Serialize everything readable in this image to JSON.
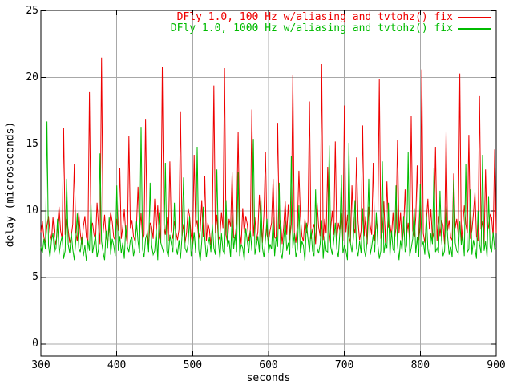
{
  "colors": {
    "background": "#ffffff",
    "axis": "#000000",
    "grid": "#a8a8a8",
    "series_red": "#ee0000",
    "series_green": "#00bb00"
  },
  "chart_data": {
    "type": "line",
    "title": "",
    "xlabel": "seconds",
    "ylabel": "delay (microseconds)",
    "xlim": [
      300,
      900
    ],
    "ylim": [
      0,
      25
    ],
    "xticks": [
      300,
      400,
      500,
      600,
      700,
      800,
      900
    ],
    "yticks": [
      0,
      5,
      10,
      15,
      20,
      25
    ],
    "grid": true,
    "legend_position": "top-right-inside",
    "x_start": 300,
    "x_step": 2,
    "series": [
      {
        "name": "DFly 1.0, 100 Hz w/aliasing and tvtohz() fix",
        "color": "#ee0000",
        "values": [
          8.4,
          9.2,
          8.0,
          7.6,
          8.9,
          9.6,
          8.3,
          7.8,
          9.5,
          8.1,
          7.4,
          8.8,
          10.3,
          8.5,
          7.9,
          16.2,
          8.2,
          9.4,
          8.6,
          7.6,
          8.1,
          9.0,
          13.5,
          8.4,
          7.7,
          9.9,
          8.3,
          7.5,
          8.8,
          9.6,
          8.0,
          7.7,
          18.9,
          8.6,
          9.1,
          8.2,
          7.8,
          10.6,
          8.9,
          7.5,
          21.5,
          8.3,
          9.7,
          8.1,
          7.6,
          8.7,
          9.9,
          9.2,
          8.0,
          7.8,
          9.4,
          8.5,
          13.2,
          7.9,
          8.8,
          10.1,
          8.2,
          7.5,
          15.6,
          8.7,
          9.3,
          8.1,
          7.7,
          8.9,
          11.8,
          8.4,
          9.8,
          7.8,
          8.2,
          16.9,
          8.6,
          7.4,
          9.1,
          8.8,
          7.9,
          10.9,
          8.3,
          10.4,
          8.0,
          7.6,
          20.8,
          8.9,
          8.2,
          9.5,
          7.7,
          13.7,
          8.5,
          7.9,
          9.2,
          8.4,
          7.8,
          8.6,
          17.4,
          8.1,
          9.0,
          7.6,
          8.4,
          10.2,
          9.6,
          8.2,
          7.5,
          14.2,
          8.8,
          9.3,
          7.9,
          8.5,
          10.8,
          8.0,
          12.6,
          7.7,
          9.1,
          8.6,
          7.4,
          8.9,
          19.4,
          8.3,
          9.7,
          7.8,
          8.1,
          9.9,
          8.7,
          20.7,
          8.2,
          7.6,
          9.4,
          8.8,
          12.9,
          8.0,
          7.9,
          9.2,
          15.9,
          8.5,
          7.5,
          10.2,
          8.3,
          9.6,
          9.0,
          7.7,
          8.6,
          17.6,
          8.1,
          9.5,
          7.8,
          8.4,
          11.2,
          8.9,
          7.6,
          9.8,
          14.4,
          8.2,
          7.7,
          8.5,
          9.1,
          12.4,
          8.0,
          7.9,
          16.6,
          8.6,
          9.3,
          7.5,
          8.8,
          10.7,
          8.2,
          10.5,
          7.8,
          9.0,
          20.2,
          8.4,
          7.6,
          8.9,
          13.0,
          9.6,
          8.1,
          7.7,
          9.4,
          8.3,
          9.2,
          18.2,
          7.9,
          8.6,
          9.0,
          7.5,
          10.6,
          8.8,
          8.1,
          21.0,
          7.8,
          9.4,
          8.3,
          13.3,
          7.6,
          8.7,
          10.0,
          8.2,
          15.2,
          7.9,
          9.1,
          8.5,
          9.8,
          7.7,
          17.9,
          8.4,
          9.7,
          8.0,
          7.6,
          11.9,
          8.8,
          8.3,
          14.0,
          9.2,
          7.8,
          8.5,
          16.4,
          8.1,
          9.6,
          7.5,
          10.3,
          8.9,
          8.2,
          13.6,
          7.7,
          9.3,
          8.6,
          19.9,
          7.9,
          8.4,
          10.7,
          7.6,
          12.2,
          8.8,
          9.0,
          8.1,
          9.9,
          7.8,
          8.7,
          15.3,
          8.3,
          9.9,
          7.5,
          8.6,
          11.6,
          8.2,
          9.1,
          7.7,
          17.1,
          8.5,
          8.0,
          9.5,
          13.4,
          7.8,
          8.8,
          20.6,
          8.3,
          7.6,
          9.2,
          10.9,
          8.6,
          10.1,
          7.9,
          8.4,
          14.8,
          7.7,
          9.6,
          8.1,
          9.3,
          8.9,
          7.5,
          16.0,
          8.5,
          9.3,
          8.0,
          7.8,
          12.8,
          8.7,
          9.4,
          8.2,
          20.3,
          7.6,
          8.9,
          10.4,
          9.0,
          8.3,
          15.7,
          7.9,
          8.5,
          9.8,
          11.4,
          8.1,
          7.7,
          18.6,
          8.6,
          9.2,
          7.5,
          13.1,
          8.4,
          8.8,
          9.7,
          9.5,
          8.0,
          14.6,
          8.3
        ]
      },
      {
        "name": "DFly 1.0, 1000 Hz w/aliasing and tvtohz() fix",
        "color": "#00bb00",
        "values": [
          7.3,
          6.8,
          7.9,
          7.1,
          16.7,
          7.4,
          6.5,
          7.8,
          8.3,
          6.9,
          7.2,
          9.4,
          6.7,
          7.6,
          8.1,
          6.4,
          7.0,
          12.4,
          7.5,
          6.8,
          8.4,
          7.1,
          6.3,
          7.7,
          9.8,
          7.2,
          6.9,
          8.0,
          6.6,
          7.4,
          6.2,
          7.8,
          7.0,
          10.6,
          6.8,
          7.5,
          8.2,
          6.5,
          7.1,
          14.3,
          7.7,
          6.9,
          6.3,
          8.5,
          7.2,
          9.5,
          6.7,
          7.9,
          7.4,
          6.6,
          11.9,
          7.0,
          8.1,
          6.8,
          7.6,
          6.4,
          8.9,
          7.3,
          6.9,
          7.8,
          8.0,
          6.6,
          7.2,
          9.2,
          7.7,
          6.8,
          16.3,
          7.1,
          6.5,
          7.9,
          8.3,
          6.9,
          12.1,
          7.4,
          6.7,
          7.0,
          8.6,
          6.3,
          9.9,
          7.6,
          7.2,
          6.8,
          13.6,
          7.0,
          6.5,
          8.2,
          7.5,
          6.9,
          10.6,
          7.3,
          6.7,
          7.8,
          6.4,
          8.1,
          12.5,
          7.2,
          6.9,
          7.5,
          9.6,
          6.6,
          7.3,
          8.4,
          6.8,
          14.8,
          7.1,
          6.2,
          7.7,
          10.3,
          7.9,
          6.5,
          7.4,
          8.0,
          6.9,
          9.0,
          7.2,
          6.7,
          13.1,
          7.6,
          6.4,
          8.3,
          7.0,
          6.8,
          10.8,
          7.3,
          7.8,
          6.5,
          9.7,
          7.1,
          8.2,
          6.9,
          12.9,
          6.6,
          7.5,
          7.2,
          6.3,
          8.7,
          7.7,
          6.8,
          8.5,
          7.0,
          15.4,
          6.7,
          7.4,
          8.1,
          6.9,
          11.0,
          7.2,
          6.5,
          7.9,
          9.4,
          6.8,
          7.5,
          7.1,
          9.5,
          6.6,
          8.0,
          7.3,
          12.1,
          6.9,
          6.4,
          7.8,
          9.3,
          7.0,
          7.6,
          6.7,
          14.1,
          7.2,
          8.3,
          6.5,
          7.1,
          10.4,
          6.8,
          7.7,
          7.4,
          6.2,
          9.1,
          7.9,
          6.9,
          8.6,
          7.0,
          6.6,
          11.6,
          7.2,
          6.8,
          7.5,
          9.3,
          6.4,
          8.1,
          7.0,
          6.9,
          14.9,
          7.3,
          6.7,
          7.8,
          9.1,
          7.1,
          6.5,
          8.4,
          12.7,
          6.8,
          7.4,
          7.0,
          6.3,
          15.1,
          7.6,
          6.9,
          8.0,
          10.8,
          7.2,
          6.6,
          7.7,
          6.8,
          10.2,
          7.1,
          6.5,
          7.9,
          12.4,
          6.7,
          7.3,
          8.2,
          6.9,
          9.9,
          7.5,
          6.4,
          7.0,
          13.7,
          6.8,
          7.6,
          7.2,
          10.6,
          6.6,
          8.5,
          7.1,
          6.9,
          11.9,
          7.4,
          6.3,
          7.8,
          7.0,
          9.6,
          6.9,
          7.4,
          14.4,
          6.6,
          7.2,
          7.9,
          10.2,
          6.8,
          8.0,
          6.5,
          12.0,
          7.3,
          7.7,
          6.7,
          9.8,
          7.1,
          6.4,
          8.3,
          7.5,
          13.2,
          6.9,
          7.2,
          6.8,
          11.5,
          7.8,
          6.6,
          7.0,
          10.4,
          8.1,
          6.7,
          7.3,
          6.5,
          12.3,
          7.6,
          7.0,
          6.8,
          9.2,
          7.4,
          8.2,
          6.6,
          13.5,
          6.9,
          7.1,
          11.6,
          6.7,
          7.8,
          7.2,
          6.4,
          10.0,
          7.5,
          6.8,
          14.2,
          7.0,
          7.7,
          6.5,
          11.1,
          7.3,
          6.9,
          8.4,
          7.1,
          7.2
        ]
      }
    ]
  }
}
